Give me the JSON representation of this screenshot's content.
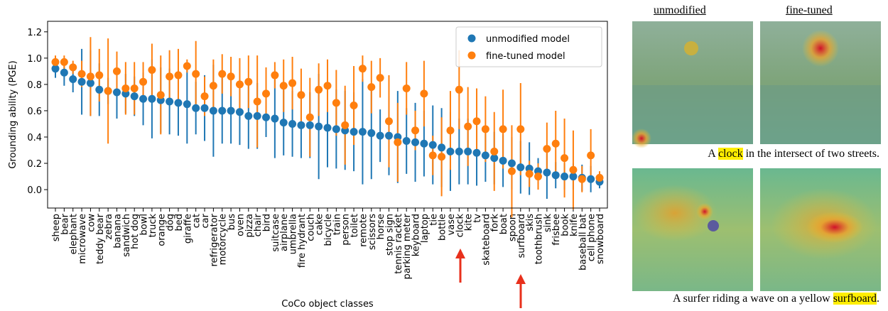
{
  "chart_data": {
    "type": "errorbar",
    "y_label": "Grounding ability (PGE)",
    "x_label": "CoCo object classes",
    "categories": [
      "sheep",
      "bear",
      "elephant",
      "microwave",
      "cow",
      "teddy bear",
      "zebra",
      "banana",
      "sandwich",
      "hot dog",
      "bowl",
      "truck",
      "orange",
      "dog",
      "bed",
      "giraffe",
      "cat",
      "car",
      "refrigerator",
      "motorcycle",
      "bus",
      "oven",
      "pizza",
      "chair",
      "bird",
      "suitcase",
      "airplane",
      "umbrella",
      "fire hydrant",
      "couch",
      "cake",
      "bicycle",
      "train",
      "person",
      "toilet",
      "remote",
      "scissors",
      "horse",
      "stop sign",
      "tennis racket",
      "parking meter",
      "keyboard",
      "laptop",
      "tie",
      "bottle",
      "vase",
      "clock",
      "kite",
      "tv",
      "skateboard",
      "fork",
      "boat",
      "spoon",
      "surfboard",
      "skis",
      "toothbrush",
      "sink",
      "frisbee",
      "book",
      "knife",
      "baseball bat",
      "cell phone",
      "snowboard"
    ],
    "series": [
      {
        "name": "unmodified model",
        "color": "#1f77b4",
        "values": [
          0.92,
          0.89,
          0.84,
          0.82,
          0.81,
          0.76,
          0.75,
          0.74,
          0.73,
          0.71,
          0.69,
          0.69,
          0.68,
          0.67,
          0.66,
          0.65,
          0.62,
          0.62,
          0.6,
          0.6,
          0.6,
          0.59,
          0.56,
          0.56,
          0.55,
          0.54,
          0.51,
          0.5,
          0.49,
          0.49,
          0.48,
          0.47,
          0.46,
          0.45,
          0.44,
          0.44,
          0.43,
          0.41,
          0.41,
          0.4,
          0.37,
          0.36,
          0.35,
          0.34,
          0.32,
          0.29,
          0.29,
          0.29,
          0.28,
          0.26,
          0.24,
          0.22,
          0.2,
          0.17,
          0.16,
          0.14,
          0.13,
          0.11,
          0.1,
          0.1,
          0.09,
          0.08,
          0.06
        ],
        "errors": [
          0.07,
          0.1,
          0.1,
          0.25,
          0.25,
          0.2,
          0.1,
          0.2,
          0.15,
          0.15,
          0.2,
          0.3,
          0.25,
          0.25,
          0.25,
          0.3,
          0.2,
          0.25,
          0.35,
          0.25,
          0.25,
          0.25,
          0.25,
          0.25,
          0.15,
          0.3,
          0.25,
          0.25,
          0.25,
          0.25,
          0.4,
          0.3,
          0.3,
          0.3,
          0.3,
          0.4,
          0.35,
          0.2,
          0.3,
          0.35,
          0.25,
          0.3,
          0.25,
          0.3,
          0.3,
          0.3,
          0.25,
          0.25,
          0.25,
          0.2,
          0.2,
          0.2,
          0.2,
          0.2,
          0.2,
          0.1,
          0.2,
          0.1,
          0.1,
          0.1,
          0.1,
          0.1,
          0.05
        ]
      },
      {
        "name": "fine-tuned model",
        "color": "#ff7f0e",
        "values": [
          0.97,
          0.97,
          0.93,
          0.88,
          0.86,
          0.87,
          0.75,
          0.9,
          0.77,
          0.77,
          0.82,
          0.91,
          0.72,
          0.86,
          0.87,
          0.94,
          0.88,
          0.71,
          0.79,
          0.88,
          0.86,
          0.8,
          0.82,
          0.67,
          0.73,
          0.87,
          0.79,
          0.81,
          0.72,
          0.55,
          0.76,
          0.79,
          0.66,
          0.49,
          0.64,
          0.92,
          0.78,
          0.85,
          0.52,
          0.36,
          0.77,
          0.45,
          0.73,
          0.26,
          0.25,
          0.45,
          0.76,
          0.48,
          0.52,
          0.46,
          0.29,
          0.46,
          0.14,
          0.46,
          0.12,
          0.1,
          0.31,
          0.35,
          0.24,
          0.15,
          0.08,
          0.26,
          0.09
        ],
        "errors": [
          0.05,
          0.05,
          0.05,
          0.1,
          0.3,
          0.2,
          0.4,
          0.15,
          0.2,
          0.2,
          0.15,
          0.2,
          0.3,
          0.2,
          0.2,
          0.05,
          0.25,
          0.15,
          0.2,
          0.15,
          0.15,
          0.2,
          0.2,
          0.35,
          0.2,
          0.1,
          0.2,
          0.2,
          0.2,
          0.3,
          0.2,
          0.2,
          0.25,
          0.3,
          0.3,
          0.1,
          0.2,
          0.15,
          0.35,
          0.3,
          0.2,
          0.15,
          0.25,
          0.15,
          0.3,
          0.3,
          0.3,
          0.3,
          0.25,
          0.25,
          0.3,
          0.3,
          0.35,
          0.35,
          0.1,
          0.1,
          0.2,
          0.25,
          0.3,
          0.3,
          0.1,
          0.2,
          0.05
        ]
      }
    ],
    "ylim": [
      -0.14,
      1.28
    ],
    "yticks": [
      {
        "value": 0,
        "label": "0.0"
      },
      0.2,
      0.4,
      0.6,
      0.8,
      {
        "value": 1,
        "label": "1.0"
      },
      1.2
    ],
    "legend": "upper right"
  },
  "panels": {
    "headers": [
      "unmodified",
      "fine-tuned"
    ],
    "captions": [
      {
        "before": "A ",
        "highlight": "clock",
        "after": " in the intersect of two streets."
      },
      {
        "before": "A surfer riding a wave on a yellow ",
        "highlight": "surfboard",
        "after": "."
      }
    ]
  }
}
